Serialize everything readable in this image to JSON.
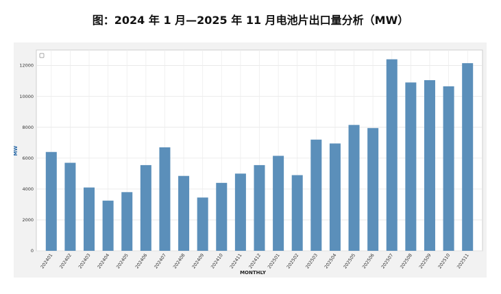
{
  "title": "图：2024 年 1 月—2025 年 11 月电池片出口量分析（MW）",
  "chart_data": {
    "type": "bar",
    "title": "",
    "xlabel": "MONTHLY",
    "ylabel": "MW",
    "ylim": [
      0,
      13000
    ],
    "yticks": [
      0,
      2000,
      4000,
      6000,
      8000,
      10000,
      12000
    ],
    "grid": true,
    "bar_color": "#5b8fba",
    "categories": [
      "202401",
      "202402",
      "202403",
      "202404",
      "202405",
      "202406",
      "202407",
      "202408",
      "202409",
      "202410",
      "202411",
      "202412",
      "202501",
      "202502",
      "202503",
      "202504",
      "202505",
      "202506",
      "202507",
      "202508",
      "202509",
      "202510",
      "202511"
    ],
    "values": [
      6400,
      5700,
      4100,
      3250,
      3800,
      5550,
      6700,
      4850,
      3450,
      4400,
      5000,
      5550,
      6150,
      4900,
      7200,
      6950,
      8150,
      7950,
      12400,
      10900,
      11050,
      10650,
      12150
    ]
  }
}
